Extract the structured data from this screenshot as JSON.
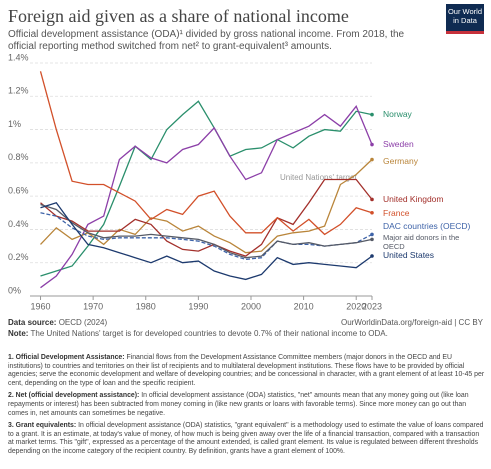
{
  "header": {
    "title": "Foreign aid given as a share of national income",
    "subtitle": "Official development assistance (ODA)¹ divided by gross national income. From 2018, the official reporting method switched from net² to grant-equivalent³ amounts.",
    "logo": [
      "Our World",
      "in Data"
    ]
  },
  "chart_data": {
    "type": "line",
    "annotation": "United Nations' target",
    "x": [
      1960,
      1963,
      1966,
      1969,
      1972,
      1975,
      1978,
      1981,
      1984,
      1987,
      1990,
      1993,
      1996,
      1999,
      2002,
      2005,
      2008,
      2011,
      2014,
      2017,
      2020,
      2023
    ],
    "xlim": [
      1958,
      2023
    ],
    "xticks": [
      1960,
      1970,
      1980,
      1990,
      2000,
      2010,
      2020,
      2023
    ],
    "ylim": [
      0,
      1.4
    ],
    "yticks": [
      {
        "value": 0,
        "label": "0%"
      },
      {
        "value": 0.2,
        "label": "0.2%"
      },
      {
        "value": 0.4,
        "label": "0.4%"
      },
      {
        "value": 0.6,
        "label": "0.6%"
      },
      {
        "value": 0.8,
        "label": "0.8%"
      },
      {
        "value": 1,
        "label": "1%"
      },
      {
        "value": 1.2,
        "label": "1.2%"
      },
      {
        "value": 1.4,
        "label": "1.4%"
      }
    ],
    "grid": true,
    "series": [
      {
        "name": "Norway",
        "color": "#2a8f6c",
        "values": [
          0.12,
          0.15,
          0.18,
          0.3,
          0.43,
          0.66,
          0.9,
          0.82,
          1.0,
          1.09,
          1.17,
          1.01,
          0.84,
          0.88,
          0.89,
          0.94,
          0.89,
          0.96,
          1.0,
          0.99,
          1.11,
          1.09
        ]
      },
      {
        "name": "Sweden",
        "color": "#8c3fa8",
        "values": [
          0.05,
          0.12,
          0.25,
          0.43,
          0.48,
          0.82,
          0.9,
          0.83,
          0.8,
          0.88,
          0.91,
          1.01,
          0.84,
          0.7,
          0.74,
          0.94,
          0.98,
          1.02,
          1.09,
          1.02,
          1.14,
          0.91
        ]
      },
      {
        "name": "Germany",
        "color": "#b9853a",
        "values": [
          0.31,
          0.41,
          0.34,
          0.38,
          0.31,
          0.4,
          0.37,
          0.47,
          0.45,
          0.39,
          0.42,
          0.36,
          0.32,
          0.26,
          0.27,
          0.36,
          0.38,
          0.39,
          0.42,
          0.67,
          0.73,
          0.82
        ]
      },
      {
        "name": "United Kingdom",
        "color": "#a3302b",
        "values": [
          0.56,
          0.48,
          0.45,
          0.39,
          0.39,
          0.39,
          0.46,
          0.43,
          0.33,
          0.28,
          0.27,
          0.31,
          0.27,
          0.24,
          0.31,
          0.47,
          0.43,
          0.56,
          0.7,
          0.7,
          0.7,
          0.58
        ]
      },
      {
        "name": "France",
        "color": "#d2502a",
        "values": [
          1.35,
          1.0,
          0.69,
          0.67,
          0.67,
          0.62,
          0.57,
          0.46,
          0.52,
          0.49,
          0.6,
          0.63,
          0.48,
          0.38,
          0.38,
          0.47,
          0.39,
          0.46,
          0.37,
          0.43,
          0.53,
          0.5
        ]
      },
      {
        "name": "DAC countries (OECD)",
        "color": "#3e63a8",
        "dash": true,
        "values": [
          0.5,
          0.48,
          0.41,
          0.36,
          0.34,
          0.35,
          0.35,
          0.35,
          0.35,
          0.34,
          0.33,
          0.3,
          0.25,
          0.22,
          0.23,
          0.33,
          0.31,
          0.31,
          0.3,
          0.31,
          0.32,
          0.37
        ]
      },
      {
        "name": "Major aid donors in the OECD",
        "color": "#555a66",
        "values": [
          0.55,
          0.52,
          0.44,
          0.38,
          0.35,
          0.36,
          0.36,
          0.37,
          0.36,
          0.35,
          0.34,
          0.31,
          0.26,
          0.23,
          0.24,
          0.33,
          0.31,
          0.32,
          0.3,
          0.31,
          0.32,
          0.34
        ]
      },
      {
        "name": "United States",
        "color": "#1d3a6e",
        "values": [
          0.53,
          0.56,
          0.43,
          0.31,
          0.29,
          0.26,
          0.23,
          0.2,
          0.24,
          0.2,
          0.21,
          0.15,
          0.12,
          0.1,
          0.13,
          0.23,
          0.19,
          0.2,
          0.19,
          0.18,
          0.17,
          0.24
        ]
      }
    ]
  },
  "footer": {
    "source_label": "Data source:",
    "source": "OECD (2024)",
    "url": "OurWorldinData.org/foreign-aid | CC BY",
    "note_label": "Note:",
    "note": "The United Nations' target is for developed countries to devote 0.7% of their national income to ODA."
  },
  "notes": [
    {
      "title": "1. Official Development Assistance:",
      "text": "Financial flows from the Development Assistance Committee members (major donors in the OECD and EU institutions) to countries and territories on their list of recipients and to multilateral development institutions. These flows have to be provided by official agencies; serve the economic development and welfare of developing countries; and be concessional in character, with a grant element of at least 10-45 per cent, depending on the type of loan and the specific recipient."
    },
    {
      "title": "2. Net (official development assistance):",
      "text": "In official development assistance (ODA) statistics, \"net\" amounts mean that any money going out (like loan repayments or interest) has been subtracted from money coming in (like new grants or loans with favorable terms). Since more money can go out than comes in, net amounts can sometimes be negative."
    },
    {
      "title": "3. Grant equivalents:",
      "text": "In official development assistance (ODA) statistics, \"grant equivalent\" is a methodology used to estimate the value of loans compared to a grant. It is an estimate, at today's value of money, of how much is being given away over the life of a financial transaction, compared with a transaction at market terms. This \"gift\", expressed as a percentage of the amount extended, is called grant element. Its value is regulated between different thresholds depending on the income category of the recipient country. By definition, grants have a grant element of 100%."
    }
  ]
}
